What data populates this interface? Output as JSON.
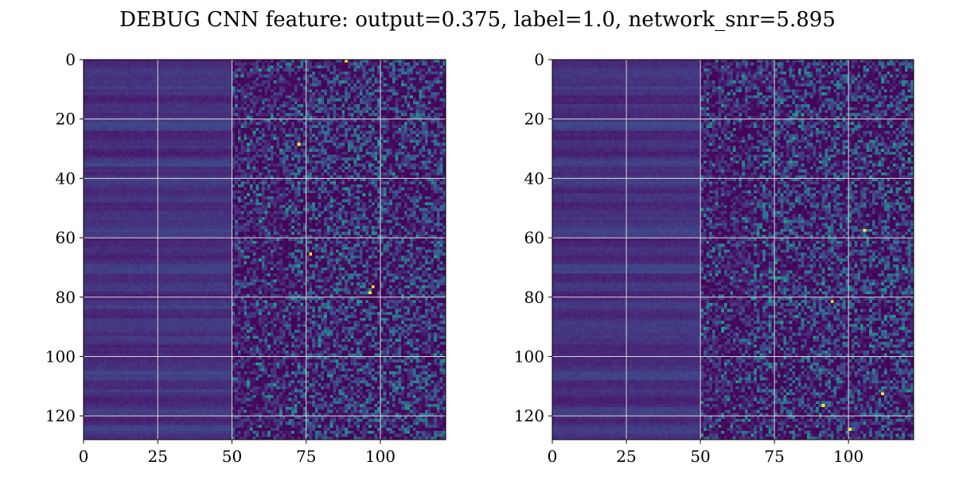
{
  "chart_data": [
    {
      "type": "heatmap",
      "panel": "left",
      "colormap": "viridis",
      "grid": true,
      "rows": 128,
      "cols": 122,
      "xlim": [
        0,
        122
      ],
      "ylim": [
        128,
        0
      ],
      "x_ticks": [
        0,
        25,
        50,
        75,
        100
      ],
      "y_ticks": [
        0,
        20,
        40,
        60,
        80,
        100,
        120
      ],
      "value_range": [
        0,
        1
      ],
      "structure": "background near 0.08-0.2 on columns 0-49 with horizontal row banding; mostly 0 to 0.65 noise on columns 50-121; bright yellow cells near 1.0 at (88,0), (72,28), (76,65), (97,76), (96,78)"
    },
    {
      "type": "heatmap",
      "panel": "right",
      "colormap": "viridis",
      "grid": true,
      "rows": 128,
      "cols": 122,
      "xlim": [
        0,
        122
      ],
      "ylim": [
        128,
        0
      ],
      "x_ticks": [
        0,
        25,
        50,
        75,
        100
      ],
      "y_ticks": [
        0,
        20,
        40,
        60,
        80,
        100,
        120
      ],
      "value_range": [
        0,
        1
      ],
      "structure": "background near 0.08-0.2 on columns 0-49 with horizontal row banding; mostly 0 to 0.65 noise on columns 50-121; bright yellow cells near 1.0 at (94,81), (105,57), (111,112), (91,116), (100,124)"
    }
  ],
  "title": "DEBUG CNN feature: output=0.375, label=1.0, network_snr=5.895",
  "x_tick_labels": [
    "0",
    "25",
    "50",
    "75",
    "100"
  ],
  "y_tick_labels": [
    "0",
    "20",
    "40",
    "60",
    "80",
    "100",
    "120"
  ]
}
